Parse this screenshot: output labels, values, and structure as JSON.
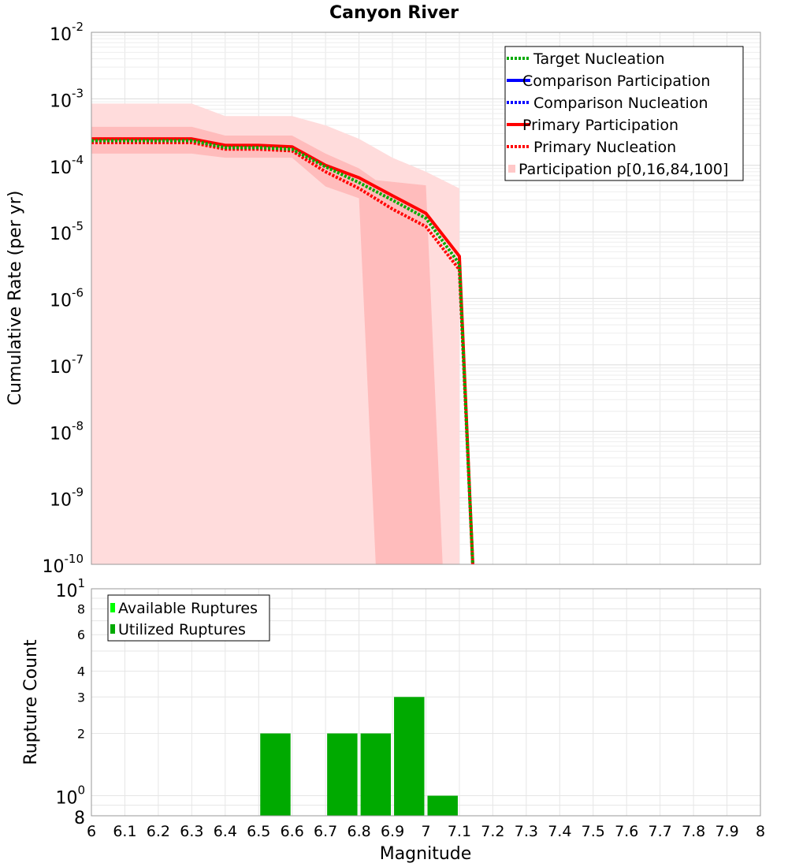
{
  "chart_data": [
    {
      "type": "line",
      "title": "Canyon River",
      "xlabel": "Magnitude",
      "ylabel": "Cumulative Rate (per yr)",
      "x_scale": "linear",
      "y_scale": "log",
      "xlim": [
        6,
        8
      ],
      "ylim": [
        1e-10,
        0.01
      ],
      "y_ticks": [
        {
          "value": 1e-10,
          "base": "10",
          "exp": "-10"
        },
        {
          "value": 1e-09,
          "base": "10",
          "exp": "-9"
        },
        {
          "value": 1e-08,
          "base": "10",
          "exp": "-8"
        },
        {
          "value": 1e-07,
          "base": "10",
          "exp": "-7"
        },
        {
          "value": 1e-06,
          "base": "10",
          "exp": "-6"
        },
        {
          "value": 1e-05,
          "base": "10",
          "exp": "-5"
        },
        {
          "value": 0.0001,
          "base": "10",
          "exp": "-4"
        },
        {
          "value": 0.001,
          "base": "10",
          "exp": "-3"
        },
        {
          "value": 0.01,
          "base": "10",
          "exp": "-2"
        }
      ],
      "grid": true,
      "legend_position": "top-right",
      "legend": [
        {
          "label": "Target Nucleation",
          "color": "#00aa00",
          "style": "dotted"
        },
        {
          "label": "Comparison Participation",
          "color": "#0000ff",
          "style": "solid"
        },
        {
          "label": "Comparison Nucleation",
          "color": "#0000ff",
          "style": "dotted"
        },
        {
          "label": "Primary Participation",
          "color": "#ff0000",
          "style": "solid"
        },
        {
          "label": "Primary Nucleation",
          "color": "#ff0000",
          "style": "dotted"
        },
        {
          "label": "Participation p[0,16,84,100]",
          "color": "#ffc8c8",
          "style": "box"
        }
      ],
      "bands": [
        {
          "name": "p0-p100",
          "color": "#ffdcdc",
          "x": [
            6,
            6.3,
            6.4,
            6.6,
            6.7,
            6.8,
            6.9,
            7.0,
            7.1
          ],
          "lower": [
            1e-10,
            1e-10,
            1e-10,
            1e-10,
            1e-10,
            1e-10,
            1e-10,
            1e-10,
            1e-10
          ],
          "upper": [
            0.00085,
            0.00085,
            0.00055,
            0.00055,
            0.0004,
            0.00025,
            0.00013,
            8e-05,
            4.5e-05
          ]
        },
        {
          "name": "p16-p84",
          "color": "#ffbcbc",
          "x": [
            6,
            6.3,
            6.4,
            6.6,
            6.7,
            6.8,
            6.85,
            7.0,
            7.05
          ],
          "lower": [
            0.00015,
            0.00015,
            0.00013,
            0.00013,
            4.8e-05,
            3.2e-05,
            1e-10,
            1e-10,
            1e-10
          ],
          "upper": [
            0.00038,
            0.00038,
            0.00028,
            0.00028,
            0.00015,
            9e-05,
            6e-05,
            5e-05,
            1e-10
          ]
        }
      ],
      "series": [
        {
          "name": "Primary Participation",
          "color": "#ff0000",
          "style": "solid",
          "x": [
            6,
            6.3,
            6.4,
            6.5,
            6.6,
            6.7,
            6.8,
            6.9,
            7.0,
            7.1,
            7.14
          ],
          "y": [
            0.00025,
            0.00025,
            0.0002,
            0.0002,
            0.00019,
            0.0001,
            6.5e-05,
            3.5e-05,
            1.9e-05,
            4.3e-06,
            1e-10
          ]
        },
        {
          "name": "Primary Nucleation",
          "color": "#ff0000",
          "style": "dotted",
          "x": [
            6,
            6.3,
            6.4,
            6.5,
            6.6,
            6.7,
            6.8,
            6.9,
            7.0,
            7.1,
            7.14
          ],
          "y": [
            0.00022,
            0.00022,
            0.000175,
            0.000175,
            0.000165,
            8e-05,
            4.5e-05,
            2.2e-05,
            1.2e-05,
            2.7e-06,
            1e-10
          ]
        },
        {
          "name": "Target Nucleation",
          "color": "#00aa00",
          "style": "dotted",
          "x": [
            6,
            6.3,
            6.4,
            6.5,
            6.6,
            6.7,
            6.8,
            6.9,
            7.0,
            7.1,
            7.14
          ],
          "y": [
            0.000235,
            0.000235,
            0.000185,
            0.000185,
            0.000175,
            9.5e-05,
            5.5e-05,
            3e-05,
            1.6e-05,
            3.3e-06,
            1e-10
          ]
        }
      ]
    },
    {
      "type": "bar",
      "xlabel": "Magnitude",
      "ylabel": "Rupture Count",
      "y_scale": "log",
      "xlim": [
        6,
        8
      ],
      "ylim": [
        0.8,
        10
      ],
      "x_ticks": [
        "6",
        "6.1",
        "6.2",
        "6.3",
        "6.4",
        "6.5",
        "6.6",
        "6.7",
        "6.8",
        "6.9",
        "7",
        "7.1",
        "7.2",
        "7.3",
        "7.4",
        "7.5",
        "7.6",
        "7.7",
        "7.8",
        "7.9",
        "8"
      ],
      "y_ticks": [
        {
          "value": 10,
          "base": "10",
          "exp": "1",
          "major": true
        },
        {
          "value": 8,
          "base": "8",
          "exp": "",
          "major": false
        },
        {
          "value": 6,
          "base": "6",
          "exp": "",
          "major": false
        },
        {
          "value": 4,
          "base": "4",
          "exp": "",
          "major": false
        },
        {
          "value": 3,
          "base": "3",
          "exp": "",
          "major": false
        },
        {
          "value": 2,
          "base": "2",
          "exp": "",
          "major": false
        },
        {
          "value": 1,
          "base": "10",
          "exp": "0",
          "major": true
        },
        {
          "value": 0.8,
          "base": "8",
          "exp": "",
          "major": true
        }
      ],
      "grid": true,
      "legend_position": "top-left",
      "legend": [
        {
          "label": "Available Ruptures",
          "color": "#00ff00"
        },
        {
          "label": "Utilized Ruptures",
          "color": "#00aa00"
        }
      ],
      "series": [
        {
          "name": "Available Ruptures",
          "color": "#00ff00",
          "x": [
            6.55,
            6.75,
            6.85,
            6.95,
            7.05
          ],
          "values": [
            2,
            2,
            2,
            3,
            1
          ]
        },
        {
          "name": "Utilized Ruptures",
          "color": "#00aa00",
          "x": [
            6.55,
            6.75,
            6.85,
            6.95,
            7.05
          ],
          "values": [
            2,
            2,
            2,
            3,
            1
          ]
        }
      ]
    }
  ]
}
